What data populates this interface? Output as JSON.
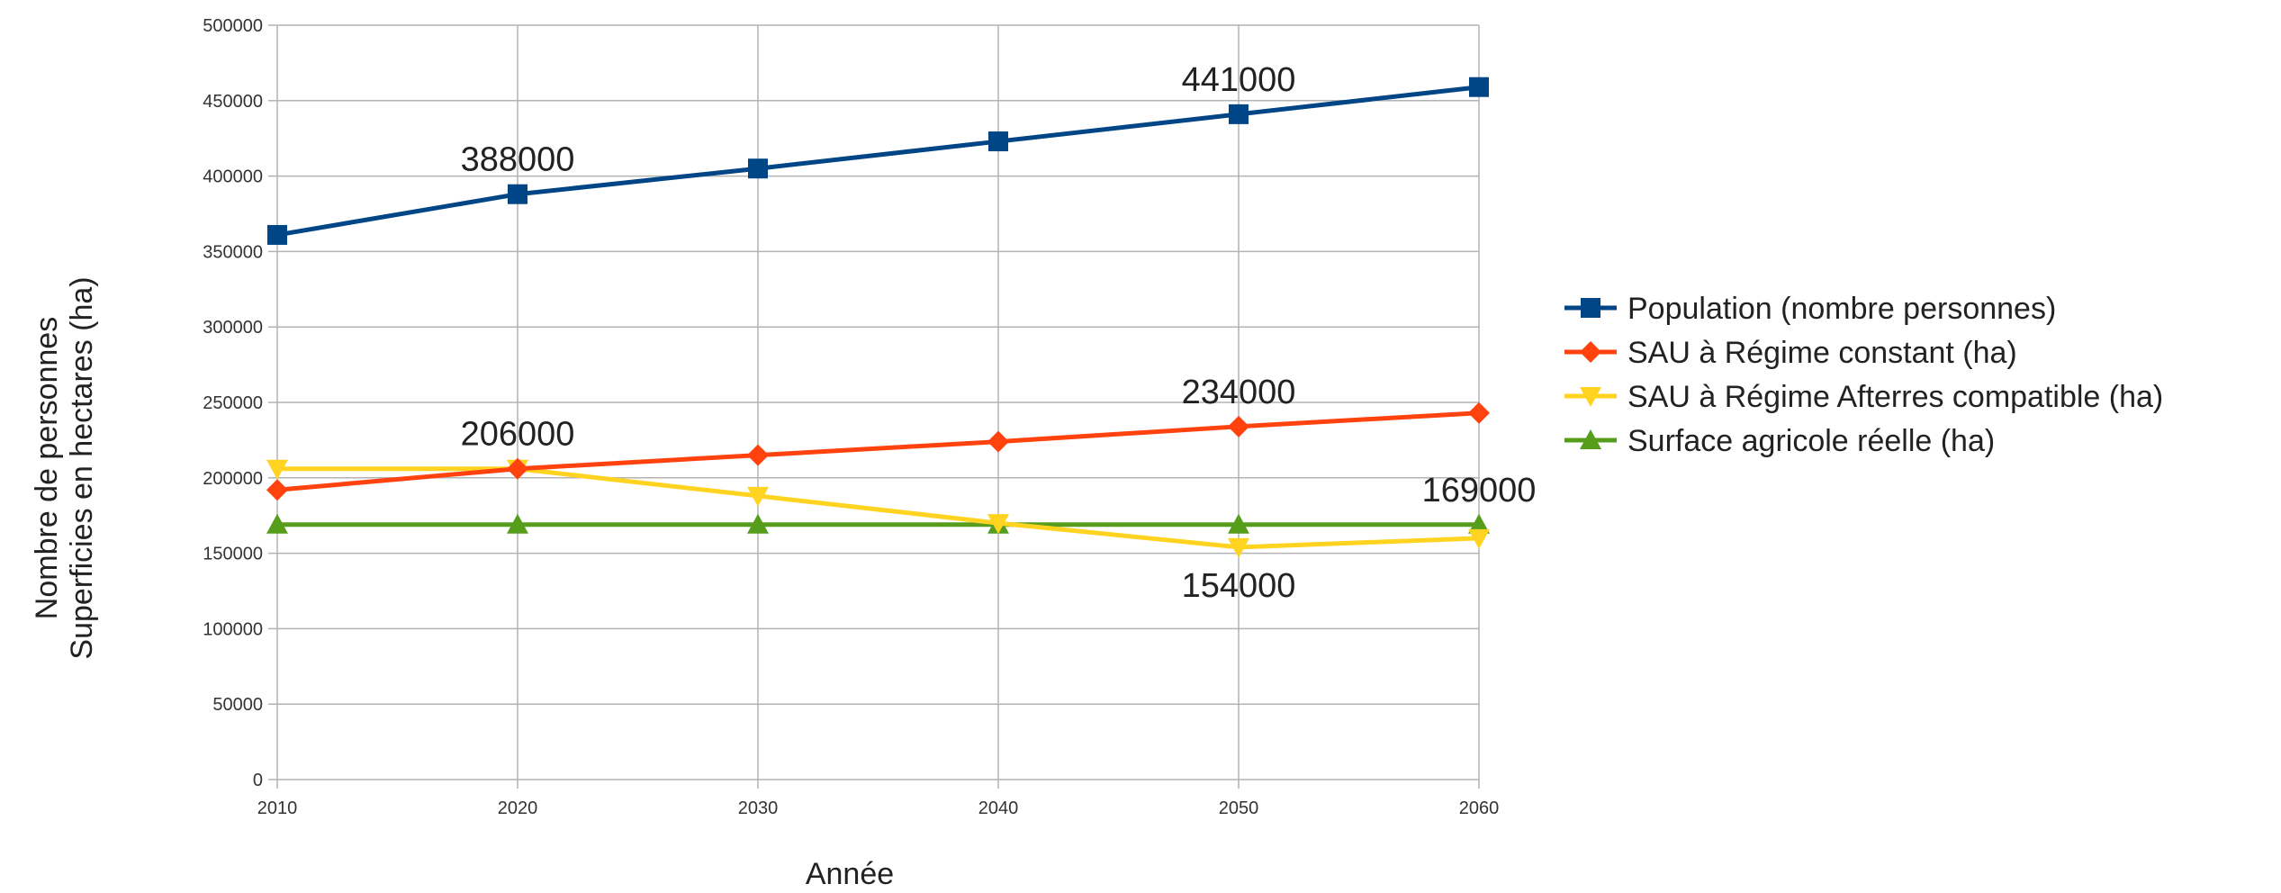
{
  "chart_data": {
    "type": "line",
    "title": "",
    "xlabel": "Année",
    "ylabel_lines": [
      "Nombre de personnes",
      "Superficies en hectares (ha)"
    ],
    "x": [
      "2010",
      "2020",
      "2030",
      "2040",
      "2050",
      "2060"
    ],
    "y_ticks": [
      "0",
      "50000",
      "100000",
      "150000",
      "200000",
      "250000",
      "300000",
      "350000",
      "400000",
      "450000",
      "500000"
    ],
    "ylim": [
      0,
      500000
    ],
    "grid": true,
    "legend_position": "right",
    "series": [
      {
        "name": "Population (nombre personnes)",
        "color": "#004586",
        "marker": "square",
        "values": [
          361000,
          388000,
          405000,
          423000,
          441000,
          459000
        ]
      },
      {
        "name": "SAU à Régime constant (ha)",
        "color": "#ff420e",
        "marker": "diamond",
        "values": [
          192000,
          206000,
          215000,
          224000,
          234000,
          243000
        ]
      },
      {
        "name": "SAU à Régime Afterres compatible (ha)",
        "color": "#ffd320",
        "marker": "triangle-down",
        "values": [
          206000,
          206000,
          188000,
          170000,
          154000,
          160000
        ]
      },
      {
        "name": "Surface agricole réelle (ha)",
        "color": "#579d1c",
        "marker": "triangle-up",
        "values": [
          169000,
          169000,
          169000,
          169000,
          169000,
          169000
        ]
      }
    ],
    "annotations": [
      {
        "text": "388000",
        "x": "2020",
        "y": 388000,
        "position": "above"
      },
      {
        "text": "441000",
        "x": "2050",
        "y": 441000,
        "position": "above"
      },
      {
        "text": "206000",
        "x": "2020",
        "y": 206000,
        "position": "above"
      },
      {
        "text": "234000",
        "x": "2050",
        "y": 234000,
        "position": "above"
      },
      {
        "text": "169000",
        "x": "2060",
        "y": 169000,
        "position": "above"
      },
      {
        "text": "154000",
        "x": "2050",
        "y": 154000,
        "position": "below"
      }
    ]
  }
}
